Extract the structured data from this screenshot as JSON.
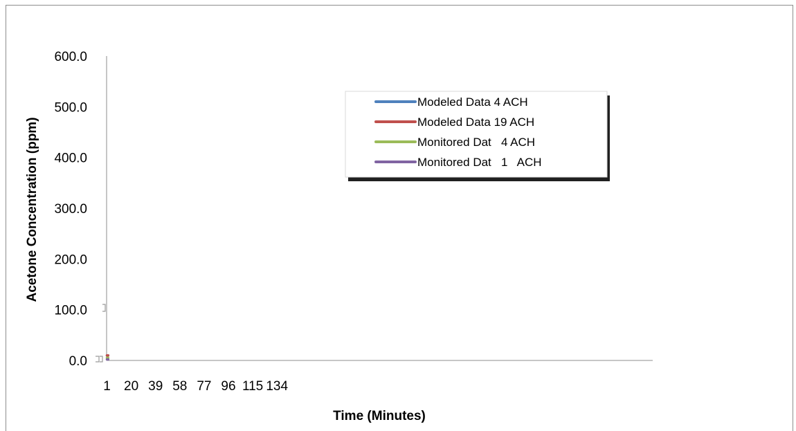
{
  "chart_data": {
    "type": "line",
    "title": "",
    "xlabel": "Time (Minutes)",
    "ylabel": "Acetone Concentration (ppm)",
    "ylim": [
      0,
      600
    ],
    "y_ticks": [
      "0.0",
      "100.0",
      "200.0",
      "300.0",
      "400.0",
      "500.0",
      "600.0"
    ],
    "x_tick_labels": [
      "1",
      "20",
      "39",
      "58",
      "77",
      "96",
      "115",
      "134"
    ],
    "x_range": [
      1,
      153
    ],
    "grid": false,
    "legend_position": "top-right",
    "series": [
      {
        "name": "Modeled Data 4 ACH",
        "color": "#4f81bd",
        "x": [
          1,
          2
        ],
        "values": [
          10,
          10
        ]
      },
      {
        "name": "Modeled Data 19 ACH",
        "color": "#c0504d",
        "x": [
          1,
          2
        ],
        "values": [
          10,
          10
        ]
      },
      {
        "name": "Monitored Dat   4 ACH",
        "color": "#9bbb59",
        "x": [
          1,
          2
        ],
        "values": [
          5,
          5
        ]
      },
      {
        "name": "Monitored Dat   1   ACH",
        "color": "#8064a2",
        "x": [
          1,
          2
        ],
        "values": [
          2,
          2
        ]
      }
    ]
  }
}
